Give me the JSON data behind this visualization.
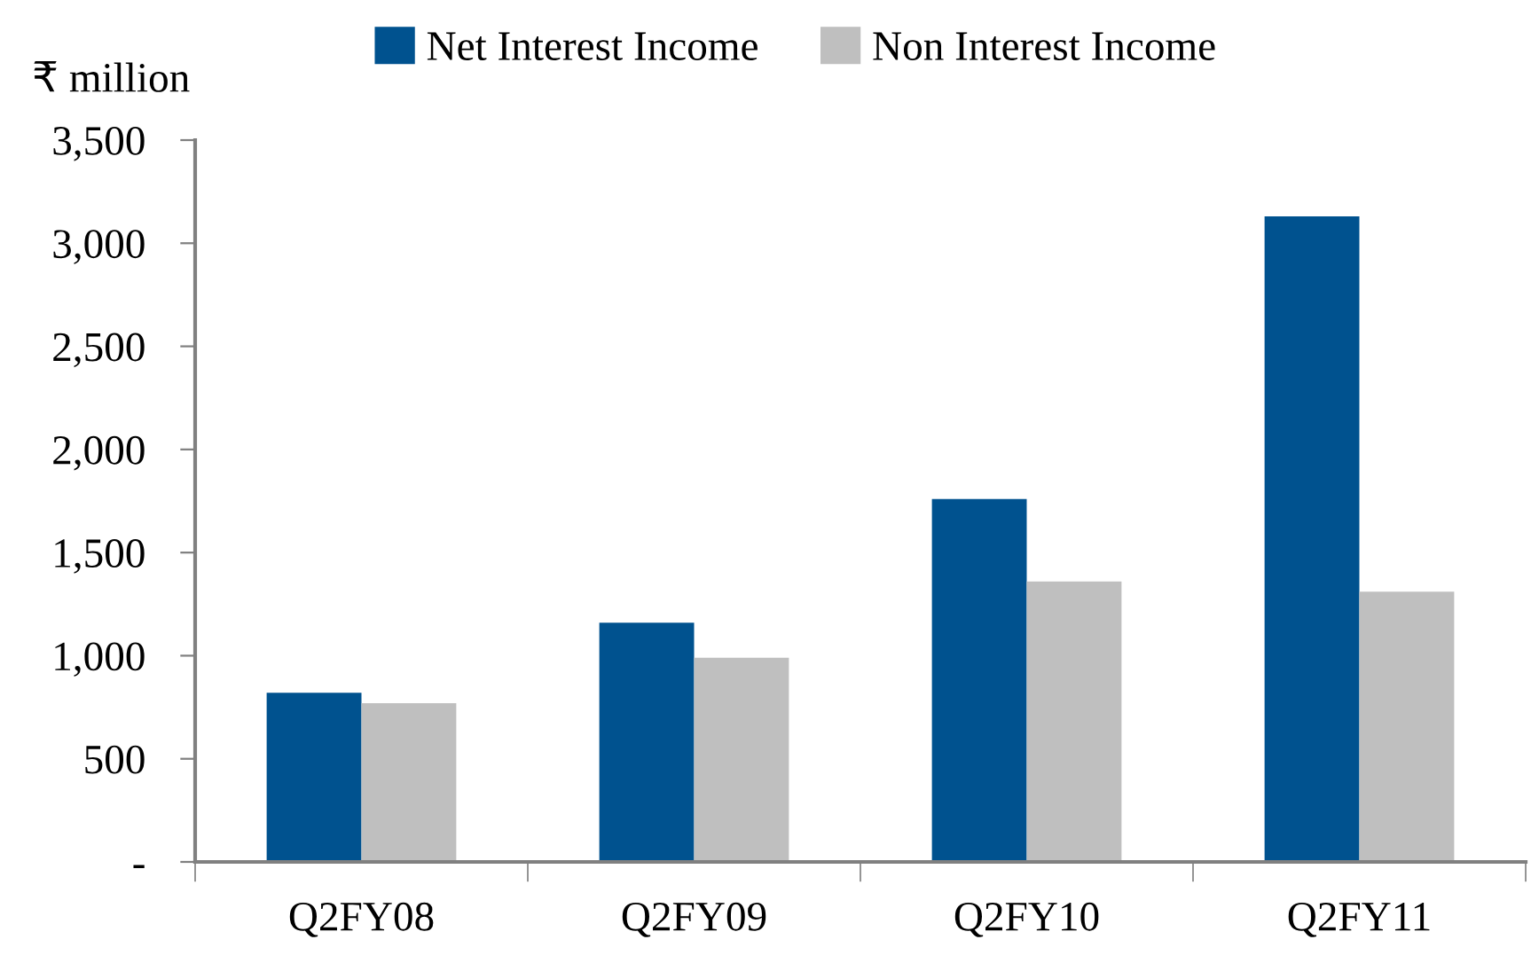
{
  "chart_data": {
    "type": "bar",
    "ylabel": "₹ million",
    "categories": [
      "Q2FY08",
      "Q2FY09",
      "Q2FY10",
      "Q2FY11"
    ],
    "series": [
      {
        "name": "Net Interest Income",
        "color": "#00528f",
        "values": [
          820,
          1160,
          1760,
          3130
        ]
      },
      {
        "name": "Non Interest Income",
        "color": "#bfbfbf",
        "values": [
          770,
          990,
          1360,
          1310
        ]
      }
    ],
    "ylim": [
      0,
      3500
    ],
    "yticks": [
      {
        "value": 0,
        "label": "-"
      },
      {
        "value": 500,
        "label": "500"
      },
      {
        "value": 1000,
        "label": "1,000"
      },
      {
        "value": 1500,
        "label": "1,500"
      },
      {
        "value": 2000,
        "label": "2,000"
      },
      {
        "value": 2500,
        "label": "2,500"
      },
      {
        "value": 3000,
        "label": "3,000"
      },
      {
        "value": 3500,
        "label": "3,500"
      }
    ],
    "grid": false,
    "legend": "top"
  }
}
